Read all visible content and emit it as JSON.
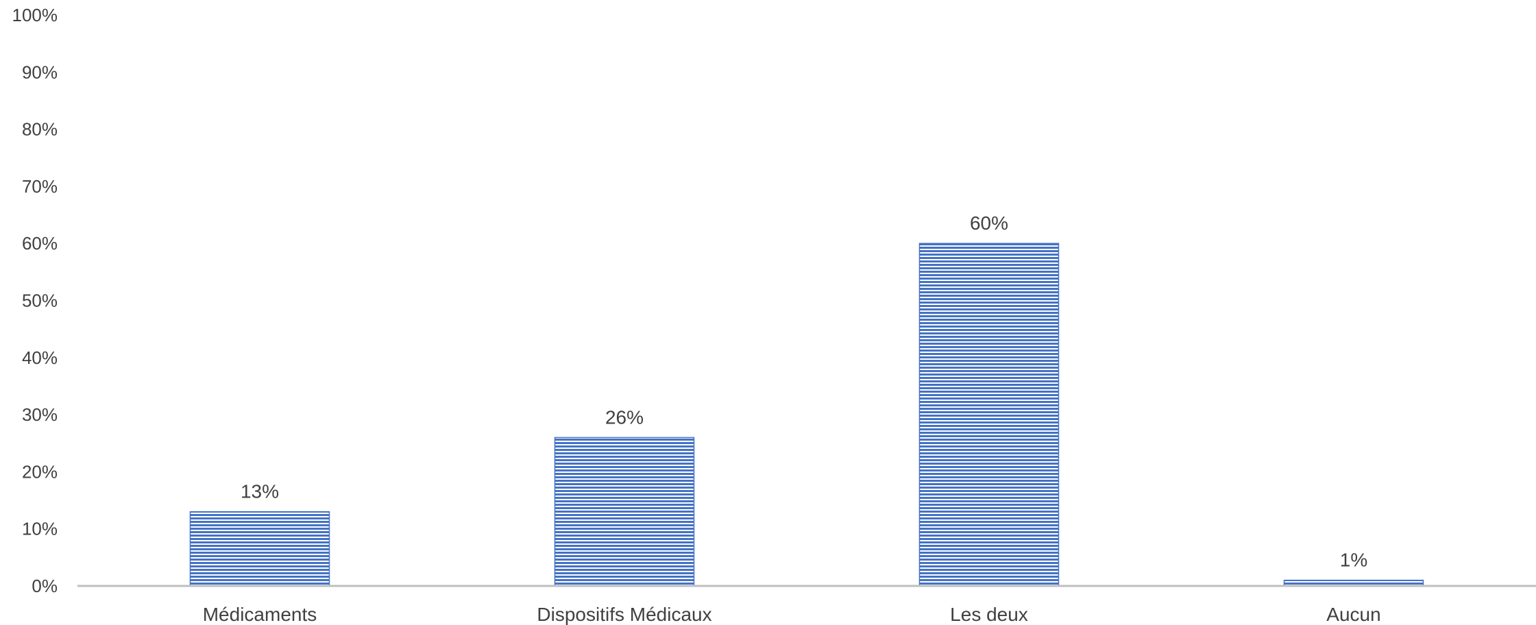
{
  "chart_data": {
    "type": "bar",
    "categories": [
      "Médicaments",
      "Dispositifs Médicaux",
      "Les deux",
      "Aucun"
    ],
    "values": [
      13,
      26,
      60,
      1
    ],
    "data_labels": [
      "13%",
      "26%",
      "60%",
      "1%"
    ],
    "title": "",
    "xlabel": "",
    "ylabel": "",
    "ylim": [
      0,
      100
    ],
    "y_ticks": [
      0,
      10,
      20,
      30,
      40,
      50,
      60,
      70,
      80,
      90,
      100
    ],
    "y_tick_labels": [
      "0%",
      "10%",
      "20%",
      "30%",
      "40%",
      "50%",
      "60%",
      "70%",
      "80%",
      "90%",
      "100%"
    ],
    "grid": false,
    "legend": "none",
    "bar_fill": "horizontal-stripes",
    "colors": {
      "bar": "#4472c4",
      "bar_stripe_gap": "#ffffff",
      "axis": "#bfbfbf",
      "text": "#404040"
    }
  }
}
